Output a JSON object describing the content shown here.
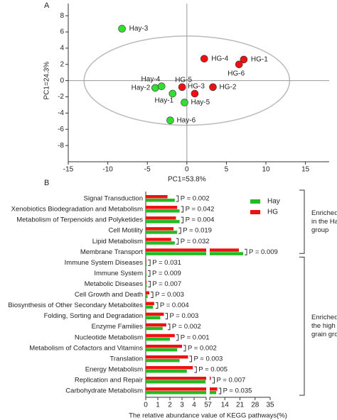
{
  "chart_data": [
    {
      "type": "scatter",
      "panel": "A",
      "x": [
        -8.2,
        2.2,
        7.2,
        6.6,
        -4.0,
        -3.2,
        -0.6,
        -1.8,
        1.0,
        3.3,
        -0.3,
        -2.1
      ],
      "y": [
        6.4,
        2.7,
        2.6,
        2.0,
        -0.9,
        -0.7,
        -0.8,
        -1.6,
        -1.6,
        -0.8,
        -2.7,
        -4.9
      ],
      "labels": [
        "Hay-3",
        "HG-4",
        "HG-1",
        "HG-6",
        "Hay-2",
        "Hay-4",
        "HG-5",
        "Hay-1",
        "HG-3",
        "HG-2",
        "Hay-5",
        "Hay-6"
      ],
      "colors": [
        "#33dd33",
        "#ee1111",
        "#ee1111",
        "#ee1111",
        "#33dd33",
        "#33dd33",
        "#ee1111",
        "#33dd33",
        "#ee1111",
        "#ee1111",
        "#33dd33",
        "#33dd33"
      ],
      "xlabel": "PC1=53.8%",
      "ylabel": "PC1=24.3%",
      "xlim": [
        -15,
        18
      ],
      "ylim": [
        -10,
        9.5
      ],
      "xticks": [
        -15,
        -10,
        -5,
        0,
        5,
        10,
        15
      ],
      "yticks": [
        -8,
        -6,
        -4,
        -2,
        0,
        2,
        4,
        6,
        8
      ]
    },
    {
      "type": "bar",
      "orientation": "horizontal",
      "panel": "B",
      "categories": [
        "Signal Transduction",
        "Xenobiotics Biodegradation and Metabolism",
        "Metabolism of Terpenoids and Polyketides",
        "Cell Motility",
        "Lipid Metabolism",
        "Membrane Transport",
        "Immune System Diseases",
        "Immune System",
        "Metabolic Diseases",
        "Cell Growth and Death",
        "Biosynthesis of Other Secondary Metabolites",
        "Folding, Sorting and Degradation",
        "Enzyme Families",
        "Nucleotide Metabolism",
        "Metabolism of Cofactors and Vitamins",
        "Translation",
        "Energy Metabolism",
        "Replication and Repair",
        "Carbohydrate Metabolism"
      ],
      "series": [
        {
          "name": "Hay",
          "color": "#22bb22",
          "values": [
            2.4,
            2.8,
            2.8,
            2.6,
            2.4,
            22.5,
            0.07,
            0.06,
            0.08,
            0.15,
            0.6,
            1.2,
            1.4,
            2.0,
            2.6,
            2.8,
            3.4,
            4.95,
            10.0
          ]
        },
        {
          "name": "HG",
          "color": "#ee1111",
          "values": [
            1.8,
            2.6,
            2.5,
            2.3,
            2.1,
            20.5,
            0.05,
            0.04,
            0.06,
            0.3,
            0.7,
            1.5,
            1.7,
            2.4,
            3.0,
            3.5,
            3.9,
            7.5,
            10.5
          ]
        }
      ],
      "annotations": [
        "P = 0.002",
        "P = 0.042",
        "P = 0.004",
        "P = 0.019",
        "P = 0.032",
        "P = 0.009",
        "P = 0.031",
        "P = 0.009",
        "P = 0.007",
        "P = 0.003",
        "P = 0.004",
        "P = 0.003",
        "P = 0.002",
        "P = 0.001",
        "P = 0.002",
        "P = 0.003",
        "P = 0.005",
        "P = 0.007",
        "P = 0.035"
      ],
      "group_labels": [
        [
          "Enriched",
          "in the Hay",
          "group"
        ],
        [
          "Enriched in",
          "the high",
          "grain groups"
        ]
      ],
      "xlabel": "The relative abundance value of KEGG pathways(%)",
      "xlim": [
        0,
        5
      ],
      "xticks": [
        0,
        1,
        2,
        3,
        4,
        5
      ],
      "x2lim": [
        7,
        35
      ],
      "x2ticks": [
        7,
        14,
        21,
        28,
        35
      ],
      "legend": "upper right"
    }
  ]
}
